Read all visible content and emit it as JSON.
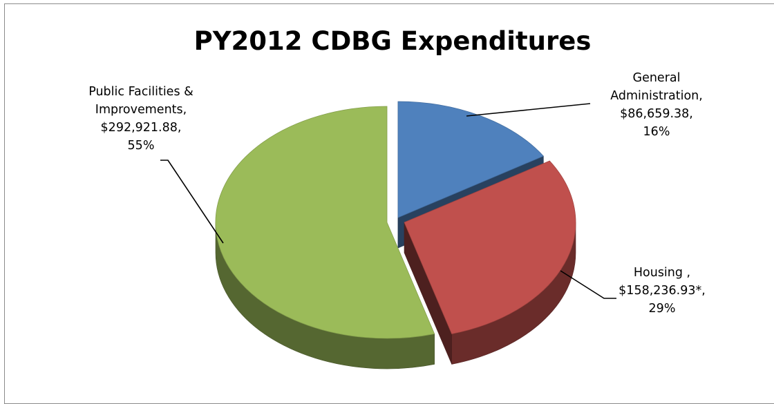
{
  "chart_data": {
    "type": "pie",
    "title": "PY2012 CDBG Expenditures",
    "slices": [
      {
        "category": "General Administration",
        "value": 86659.38,
        "percent": 16,
        "color": "#4F81BD",
        "label_lines": [
          "General",
          "Administration,",
          "$86,659.38,",
          "16%"
        ]
      },
      {
        "category": "Housing",
        "value": 158236.93,
        "percent": 29,
        "color": "#C0504D",
        "label_lines": [
          "Housing ,",
          "$158,236.93*,",
          "29%"
        ]
      },
      {
        "category": "Public Facilities & Improvements",
        "value": 292921.88,
        "percent": 55,
        "color": "#9BBB59",
        "label_lines": [
          "Public Facilities  &",
          "Improvements,",
          "$292,921.88,",
          "55%"
        ]
      }
    ],
    "legend": "none",
    "style": "3d-exploded"
  }
}
